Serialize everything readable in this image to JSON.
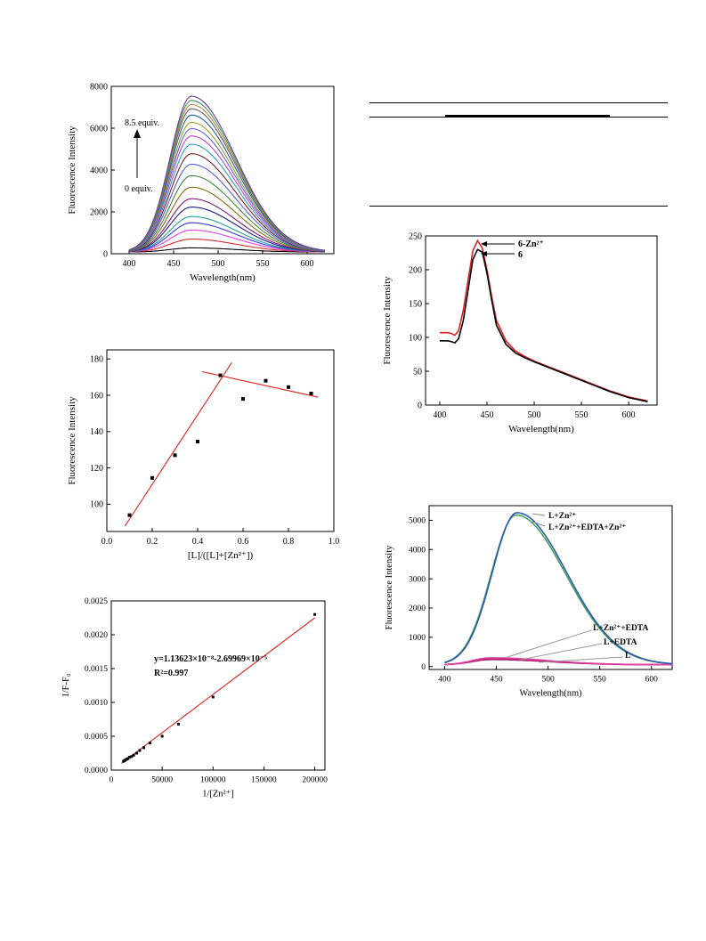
{
  "page": {
    "table_rules": 3
  },
  "chart_data": [
    {
      "id": "titration",
      "type": "line",
      "xlabel": "Wavelength(nm)",
      "ylabel": "Fluorescence Intensity",
      "xlim": [
        380,
        630
      ],
      "ylim": [
        0,
        8000
      ],
      "x_ticks": [
        400,
        450,
        500,
        550,
        600
      ],
      "y_ticks": [
        0,
        2000,
        4000,
        6000,
        8000
      ],
      "annotations": [
        "8.5 equiv.",
        "0 equiv."
      ],
      "curve_shape": {
        "start": 400,
        "end": 620,
        "peak_x": 470,
        "sigma_left": 24,
        "sigma_right": 50
      },
      "colors": [
        "#000000",
        "#d42a2a",
        "#e040e0",
        "#3a3ad6",
        "#22a0a0",
        "#1a1a8a",
        "#7a1a7a",
        "#8a6a1a",
        "#3a8a3a",
        "#5a5ad6",
        "#7a2020",
        "#2aa0c0",
        "#c040c0",
        "#6060e0",
        "#a0a020",
        "#2060a0",
        "#606060",
        "#c08040",
        "#3a9a6a",
        "#6a3a9a"
      ],
      "series": [
        {
          "peak": 200
        },
        {
          "peak": 620
        },
        {
          "peak": 1050
        },
        {
          "peak": 1400
        },
        {
          "peak": 1700
        },
        {
          "peak": 2150
        },
        {
          "peak": 2550
        },
        {
          "peak": 3100
        },
        {
          "peak": 3650
        },
        {
          "peak": 4200
        },
        {
          "peak": 4700
        },
        {
          "peak": 5150
        },
        {
          "peak": 5550
        },
        {
          "peak": 5900
        },
        {
          "peak": 6200
        },
        {
          "peak": 6550
        },
        {
          "peak": 6850
        },
        {
          "peak": 7050
        },
        {
          "peak": 7250
        },
        {
          "peak": 7450
        }
      ]
    },
    {
      "id": "job-plot",
      "type": "scatter",
      "xlabel": "[L]/([L]+[Zn²⁺])",
      "ylabel": "Fluorescence Intensity",
      "xlim": [
        0.0,
        1.0
      ],
      "ylim": [
        85,
        185
      ],
      "x_ticks": [
        0.0,
        0.2,
        0.4,
        0.6,
        0.8,
        1.0
      ],
      "y_ticks": [
        100,
        120,
        140,
        160,
        180
      ],
      "x": [
        0.1,
        0.2,
        0.3,
        0.4,
        0.5,
        0.6,
        0.7,
        0.8,
        0.9
      ],
      "y": [
        94,
        114.5,
        127,
        134.5,
        171,
        158,
        168,
        164.5,
        161
      ],
      "fit_lines": [
        {
          "x": [
            0.08,
            0.55
          ],
          "y": [
            88,
            178
          ]
        },
        {
          "x": [
            0.42,
            0.93
          ],
          "y": [
            173,
            159
          ]
        }
      ],
      "point_color": "#000000",
      "line_color": "#e02020"
    },
    {
      "id": "benesi-hildebrand",
      "type": "scatter",
      "xlabel": "1/[Zn²⁺]",
      "ylabel": "1/F-F₀",
      "xlim": [
        0,
        210000
      ],
      "ylim": [
        0,
        0.0025
      ],
      "x_ticks": [
        0,
        50000,
        100000,
        150000,
        200000
      ],
      "y_ticks": [
        0.0,
        0.0005,
        0.001,
        0.0015,
        0.002,
        0.0025
      ],
      "y_tick_labels": [
        "0.0000",
        "0.0005",
        "0.0010",
        "0.0015",
        "0.0020",
        "0.0025"
      ],
      "equation": "y=1.13623×10⁻⁸-2.69969×10⁻⁵",
      "r_squared": "R²=0.997",
      "x": [
        12000,
        13000,
        14000,
        15000,
        16500,
        18000,
        20000,
        22000,
        25000,
        28000,
        32000,
        38000,
        50000,
        66000,
        100000,
        200000
      ],
      "y": [
        0.00013,
        0.00014,
        0.00015,
        0.00016,
        0.00017,
        0.00019,
        0.0002,
        0.00022,
        0.00025,
        0.00029,
        0.00033,
        0.0004,
        0.0005,
        0.00068,
        0.00108,
        0.0023
      ],
      "fit_line": {
        "x": [
          10000,
          200000
        ],
        "y": [
          0.0001,
          0.00225
        ]
      },
      "point_color": "#000000",
      "line_color": "#e02020"
    },
    {
      "id": "compound-6",
      "type": "line",
      "xlabel": "Wavelength(nm)",
      "ylabel": "Fluorescence Intensity",
      "xlim": [
        385,
        630
      ],
      "ylim": [
        0,
        250
      ],
      "x_ticks": [
        400,
        450,
        500,
        550,
        600
      ],
      "y_ticks": [
        0,
        50,
        100,
        150,
        200,
        250
      ],
      "series": [
        {
          "name": "6-Zn²⁺",
          "color": "#e02020",
          "x": [
            400,
            408,
            412,
            416,
            420,
            425,
            430,
            435,
            440,
            445,
            450,
            455,
            460,
            470,
            480,
            490,
            500,
            520,
            540,
            560,
            580,
            600,
            620
          ],
          "y": [
            107,
            107,
            106,
            103,
            110,
            140,
            185,
            228,
            243,
            232,
            200,
            160,
            125,
            95,
            80,
            72,
            65,
            54,
            43,
            32,
            21,
            12,
            6
          ]
        },
        {
          "name": "6",
          "color": "#000000",
          "x": [
            400,
            408,
            412,
            416,
            420,
            425,
            430,
            435,
            440,
            445,
            450,
            455,
            460,
            470,
            480,
            490,
            500,
            520,
            540,
            560,
            580,
            600,
            620
          ],
          "y": [
            95,
            95,
            94,
            92,
            98,
            125,
            170,
            215,
            230,
            226,
            195,
            155,
            118,
            90,
            77,
            70,
            64,
            53,
            42,
            31,
            20,
            11,
            5
          ]
        }
      ]
    },
    {
      "id": "edta-reversibility",
      "type": "line",
      "xlabel": "Wavelength(nm)",
      "ylabel": "Fluorescence Intensity",
      "xlim": [
        385,
        620
      ],
      "ylim": [
        -100,
        5500
      ],
      "x_ticks": [
        400,
        450,
        500,
        550,
        600
      ],
      "y_ticks": [
        0,
        1000,
        2000,
        3000,
        4000,
        5000
      ],
      "labels": [
        "L+Zn²⁺",
        "L+Zn²⁺+EDTA+Zn²⁺",
        "L+Zn²⁺+EDTA",
        "L+EDTA",
        "L"
      ],
      "series": [
        {
          "name": "L+Zn²⁺",
          "color": "#2a5ab0",
          "peak": 5200,
          "peak_x": 470,
          "sigma_left": 24,
          "sigma_right": 48
        },
        {
          "name": "L+Zn²⁺+EDTA+Zn²⁺",
          "color": "#4aa060",
          "peak": 5120,
          "peak_x": 469,
          "sigma_left": 24,
          "sigma_right": 48
        },
        {
          "name": "L+Zn²⁺+EDTA",
          "color": "#e040a0",
          "peak": 240,
          "peak_x": 445,
          "sigma_left": 18,
          "sigma_right": 55
        },
        {
          "name": "L+EDTA",
          "color": "#c02060",
          "peak": 210,
          "peak_x": 445,
          "sigma_left": 18,
          "sigma_right": 55
        },
        {
          "name": "L",
          "color": "#a02080",
          "peak": 180,
          "peak_x": 445,
          "sigma_left": 18,
          "sigma_right": 55
        }
      ]
    }
  ]
}
